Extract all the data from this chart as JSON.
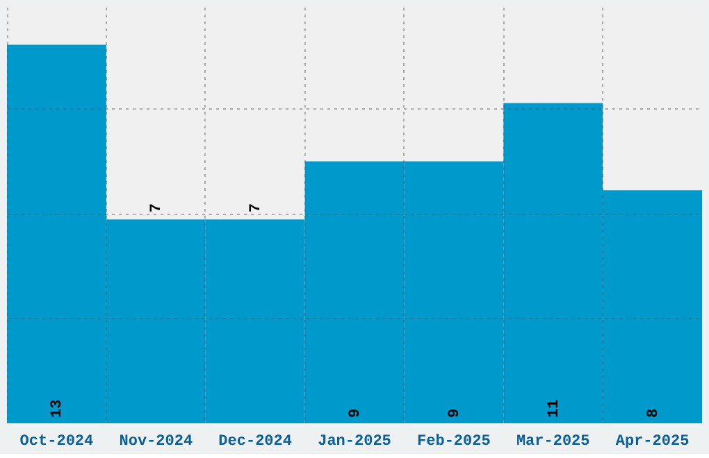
{
  "chart_data": {
    "type": "bar",
    "categories": [
      "Oct-2024",
      "Nov-2024",
      "Dec-2024",
      "Jan-2025",
      "Feb-2025",
      "Mar-2025",
      "Apr-2025"
    ],
    "values": [
      13,
      7,
      7,
      9,
      9,
      11,
      8
    ],
    "color": "#0099cc",
    "ylim": [
      0,
      14.3
    ],
    "yticks": [
      {
        "value": 3.6,
        "label": null
      },
      {
        "value": 7.2,
        "label": null
      },
      {
        "value": 10.8,
        "label": null
      }
    ],
    "tick_labels": "x",
    "grid": true,
    "data_labels": true
  }
}
